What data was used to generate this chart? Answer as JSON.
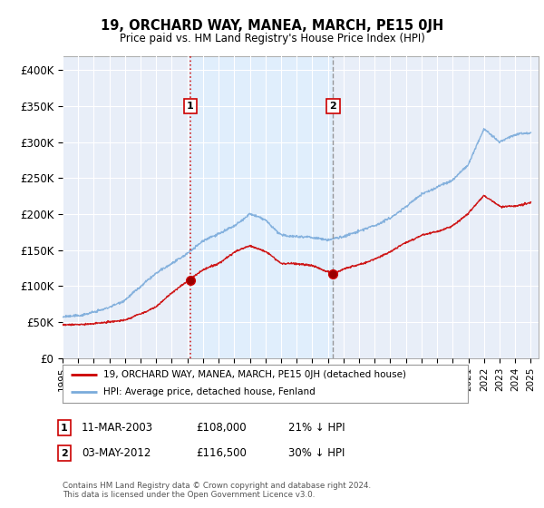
{
  "title": "19, ORCHARD WAY, MANEA, MARCH, PE15 0JH",
  "subtitle": "Price paid vs. HM Land Registry's House Price Index (HPI)",
  "ylabel_values": [
    "£0",
    "£50K",
    "£100K",
    "£150K",
    "£200K",
    "£250K",
    "£300K",
    "£350K",
    "£400K"
  ],
  "y_ticks": [
    0,
    50000,
    100000,
    150000,
    200000,
    250000,
    300000,
    350000,
    400000
  ],
  "ylim": [
    0,
    420000
  ],
  "sale1": {
    "date_num": 2003.19,
    "price": 108000,
    "label": "1"
  },
  "sale2": {
    "date_num": 2012.34,
    "price": 116500,
    "label": "2"
  },
  "legend_entries": [
    "19, ORCHARD WAY, MANEA, MARCH, PE15 0JH (detached house)",
    "HPI: Average price, detached house, Fenland"
  ],
  "table_rows": [
    [
      "1",
      "11-MAR-2003",
      "£108,000",
      "21% ↓ HPI"
    ],
    [
      "2",
      "03-MAY-2012",
      "£116,500",
      "30% ↓ HPI"
    ]
  ],
  "footnote": "Contains HM Land Registry data © Crown copyright and database right 2024.\nThis data is licensed under the Open Government Licence v3.0.",
  "sale_color": "#cc0000",
  "hpi_color": "#7aabdb",
  "vline1_color": "#cc0000",
  "vline2_color": "#888888",
  "shade_color": "#ddeeff",
  "background_color": "#e8eef8",
  "plot_bg": "#e8eef8",
  "grid_color": "#ffffff"
}
